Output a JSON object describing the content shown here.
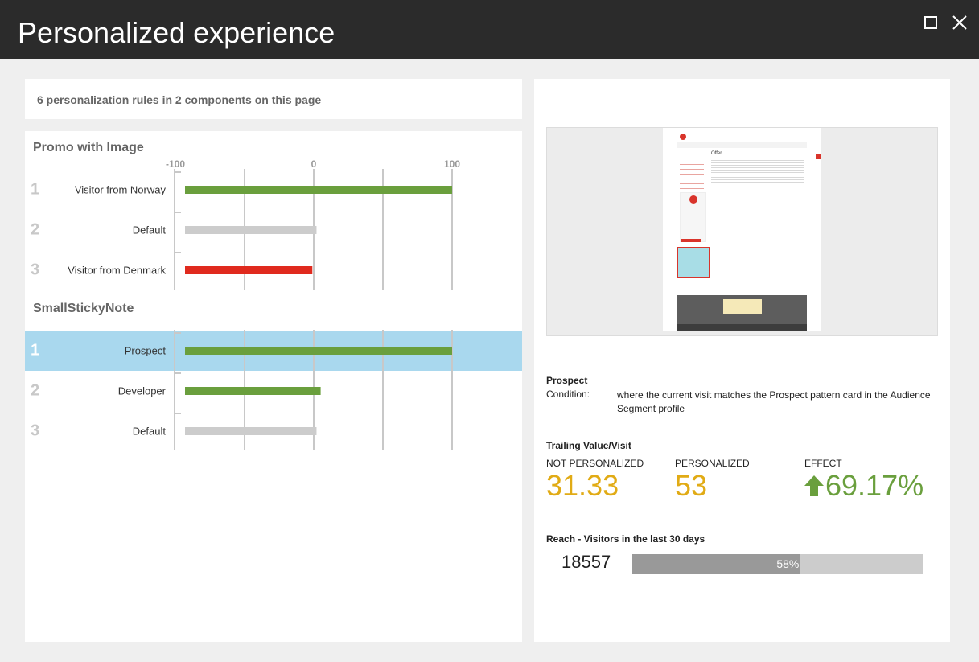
{
  "window": {
    "title": "Personalized experience",
    "maximize_icon": "maximize-icon",
    "close_icon": "close-icon"
  },
  "summary": {
    "text": "6 personalization rules in 2 components on this page"
  },
  "chart_data": {
    "type": "bar",
    "ticks": [
      "-100",
      "0",
      "100"
    ],
    "xlim": [
      -100,
      100
    ],
    "components": [
      {
        "title": "Promo with Image",
        "rules": [
          {
            "rank": "1",
            "label": "Visitor from Norway",
            "value": 100,
            "color": "#6a9f3d"
          },
          {
            "rank": "2",
            "label": "Default",
            "value": 2,
            "color": "#cccccc"
          },
          {
            "rank": "3",
            "label": "Visitor from Denmark",
            "value": -1,
            "color": "#e02a1e"
          }
        ]
      },
      {
        "title": "SmallStickyNote",
        "rules": [
          {
            "rank": "1",
            "label": "Prospect",
            "value": 100,
            "color": "#6a9f3d",
            "selected": true
          },
          {
            "rank": "2",
            "label": "Developer",
            "value": 5,
            "color": "#6a9f3d"
          },
          {
            "rank": "3",
            "label": "Default",
            "value": 2,
            "color": "#cccccc"
          }
        ]
      }
    ]
  },
  "preview": {
    "heading": "Offer"
  },
  "detail": {
    "rule_name": "Prospect",
    "condition_label": "Condition:",
    "condition_text": "where the current visit matches the Prospect pattern card in the Audience Segment profile",
    "trailing_title": "Trailing Value/Visit",
    "not_personalized_label": "NOT PERSONALIZED",
    "not_personalized_value": "31.33",
    "personalized_label": "PERSONALIZED",
    "personalized_value": "53",
    "effect_label": "EFFECT",
    "effect_value": "69.17%",
    "effect_icon": "arrow-up-icon",
    "reach_title": "Reach - Visitors in the last 30 days",
    "reach_count": "18557",
    "reach_percent_label": "58%",
    "reach_fraction": 0.58
  },
  "colors": {
    "titlebar": "#2b2b2b",
    "positive": "#6a9f3d",
    "negative": "#e02a1e",
    "neutral": "#cccccc",
    "gold": "#e1ab15",
    "selected_row": "#a9d8ee"
  }
}
